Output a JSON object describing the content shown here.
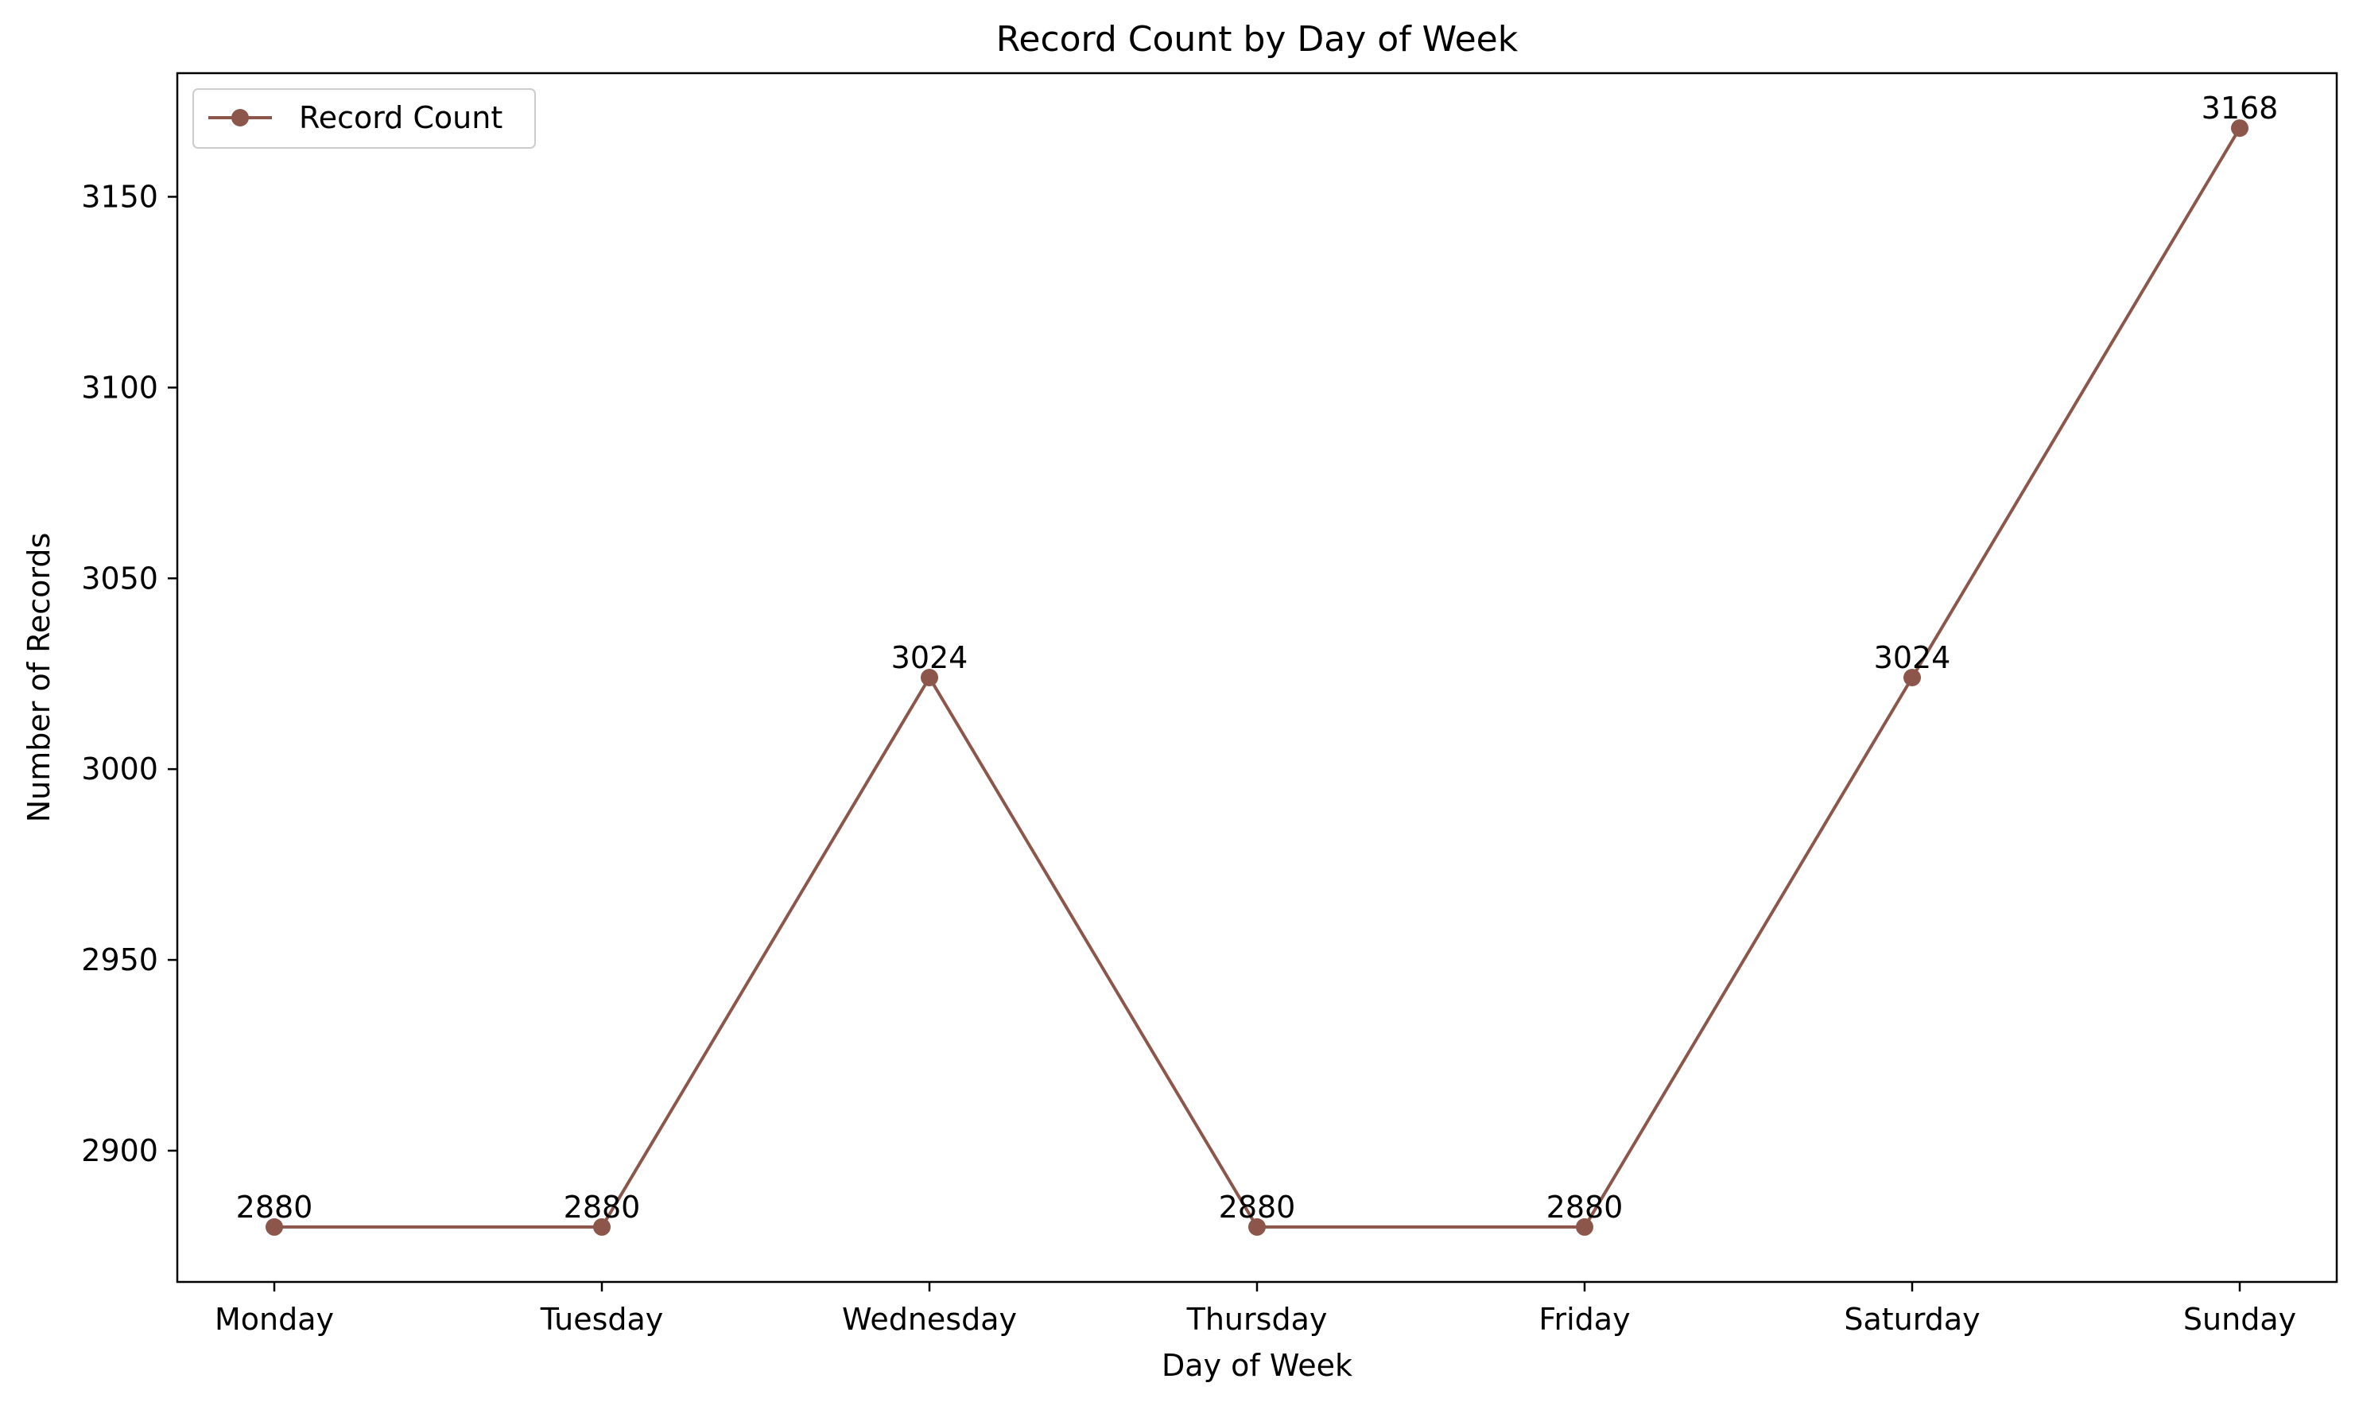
{
  "chart_data": {
    "type": "line",
    "title": "Record Count by Day of Week",
    "xlabel": "Day of Week",
    "ylabel": "Number of Records",
    "categories": [
      "Monday",
      "Tuesday",
      "Wednesday",
      "Thursday",
      "Friday",
      "Saturday",
      "Sunday"
    ],
    "series": [
      {
        "name": "Record Count",
        "values": [
          2880,
          2880,
          3024,
          2880,
          2880,
          3024,
          3168
        ],
        "color": "#8c564b",
        "marker": "circle"
      }
    ],
    "data_labels": [
      "2880",
      "2880",
      "3024",
      "2880",
      "2880",
      "3024",
      "3168"
    ],
    "ylim": [
      2865.6,
      3182.4
    ],
    "yticks": [
      2900,
      2950,
      3000,
      3050,
      3100,
      3150
    ],
    "ytick_labels": [
      "2900",
      "2950",
      "3000",
      "3050",
      "3100",
      "3150"
    ],
    "grid": false,
    "legend_position": "top-left"
  }
}
